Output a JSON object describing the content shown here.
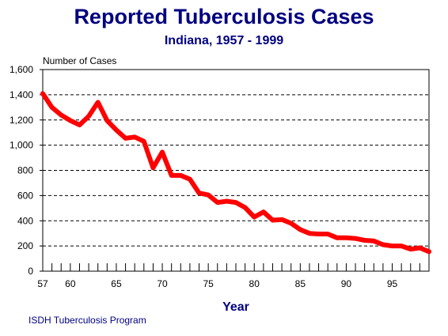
{
  "chart_data": {
    "type": "line",
    "title": "Reported Tuberculosis Cases",
    "subtitle": "Indiana, 1957 - 1999",
    "ylabel": "Number of Cases",
    "xlabel": "Year",
    "footer": "ISDH Tuberculosis Program",
    "ylim": [
      0,
      1600
    ],
    "xlim": [
      1957,
      1999
    ],
    "y_ticks": [
      0,
      200,
      400,
      600,
      800,
      1000,
      1200,
      1400,
      1600
    ],
    "y_tick_labels": [
      "0",
      "200",
      "400",
      "600",
      "800",
      "1,000",
      "1,200",
      "1,400",
      "1,600"
    ],
    "x_label_years": [
      1957,
      1960,
      1965,
      1970,
      1975,
      1980,
      1985,
      1990,
      1995
    ],
    "x_tick_labels": [
      "57",
      "60",
      "65",
      "70",
      "75",
      "80",
      "85",
      "90",
      "95"
    ],
    "grid": "horizontal dashed",
    "line_color": "#ff0000",
    "series": [
      {
        "x": [
          1957,
          1958,
          1959,
          1960,
          1961,
          1962,
          1963,
          1964,
          1965,
          1966,
          1967,
          1968,
          1969,
          1970,
          1971,
          1972,
          1973,
          1974,
          1975,
          1976,
          1977,
          1978,
          1979,
          1980,
          1981,
          1982,
          1983,
          1984,
          1985,
          1986,
          1987,
          1988,
          1989,
          1990,
          1991,
          1992,
          1993,
          1994,
          1995,
          1996,
          1997,
          1998,
          1999
        ],
        "values": [
          1410,
          1300,
          1240,
          1195,
          1160,
          1230,
          1340,
          1195,
          1120,
          1055,
          1065,
          1030,
          820,
          945,
          760,
          760,
          730,
          620,
          605,
          545,
          555,
          545,
          505,
          430,
          470,
          405,
          410,
          380,
          330,
          300,
          295,
          295,
          265,
          265,
          260,
          245,
          240,
          210,
          200,
          200,
          175,
          185,
          155
        ]
      }
    ]
  }
}
